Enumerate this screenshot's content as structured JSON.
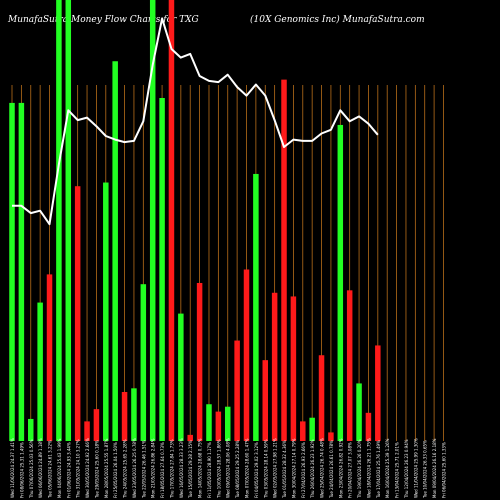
{
  "header": {
    "left": "MunafaSutra  Money Flow  Charts for TXG",
    "right": "(10X  Genomics Inc) MunafaSutra.com"
  },
  "colors": {
    "background": "#000000",
    "up": "#22ff22",
    "down": "#ff1a1a",
    "grid": "#b86e1a",
    "line": "#ffffff",
    "text": "#ffffff"
  },
  "chart_data": {
    "type": "bar",
    "title": "MunafaSutra  Money Flow  Charts for TXG",
    "subtitle": "(10X  Genomics Inc) MunafaSutra.com",
    "xlabel": "",
    "ylabel": "",
    "grid": true,
    "categories": [
      "Wed 11/06/2024",
      "Fri 08/06/2024",
      "Thu 07/06/2024",
      "Wed 06/06/2024",
      "Tue 05/06/2024",
      "Mon 04/06/2024",
      "Fri 01/06/2024",
      "Thu 31/05/2024",
      "Wed 30/05/2024",
      "Tue 29/05/2024",
      "Mon 28/05/2024",
      "Fri 25/05/2024",
      "Thu 24/05/2024",
      "Wed 23/05/2024",
      "Tue 22/05/2024",
      "Mon 21/05/2024",
      "Fri 18/05/2024",
      "Thu 17/05/2024",
      "Wed 16/05/2024",
      "Tue 15/05/2024",
      "Mon 14/05/2024",
      "Fri 11/05/2024",
      "Thu 10/05/2024",
      "Wed 09/05/2024",
      "Tue 08/05/2024",
      "Mon 07/05/2024",
      "Fri 04/05/2024",
      "Thu 03/05/2024",
      "Wed 02/05/2024",
      "Tue 01/05/2024",
      "Mon 30/04/2024",
      "Fri 27/04/2024",
      "Thu 26/04/2024",
      "Wed 25/04/2024",
      "Tue 24/04/2024",
      "Mon 23/04/2024",
      "Fri 20/04/2024",
      "Thu 19/04/2024",
      "Wed 18/04/2024",
      "Tue 17/04/2024",
      "Mon 16/04/2024",
      "Fri 13/04/2024",
      "Thu 12/04/2024",
      "Wed 11/04/2024",
      "Tue 10/04/2024",
      "Mon 09/04/2024",
      "Fri 06/04/2024"
    ],
    "tick_labels": [
      "Wed 11/06/2024 24.37 1.41%",
      "Fri 08/06/2024 25.31 1.49%",
      "Thu 07/06/2024 25.03 0.56%",
      "Wed 06/06/2024 24.89 1.18%",
      "Tue 05/06/2024 24.61 3.22%",
      "Mon 04/06/2024 25.43 1.99%",
      "Fri 01/06/2024 24.93 3.44%",
      "Thu 31/05/2024 24.10 3.27%",
      "Wed 30/05/2024 24.92 2.66%",
      "Tue 29/05/2024 25.60 0.18%",
      "Mon 28/05/2024 25.55 1.87%",
      "Fri 25/05/2024 26.04 1.50%",
      "Thu 24/05/2024 25.65 2.28%",
      "Wed 23/05/2024 26.25 0.78%",
      "Tue 22/05/2024 26.46 1.51%",
      "Mon 21/05/2024 26.86 2.84%",
      "Fri 18/05/2024 27.64 0.73%",
      "Thu 17/05/2024 27.84 1.73%",
      "Wed 16/05/2024 28.33 3.23%",
      "Tue 15/05/2024 29.28 2.15%",
      "Mon 14/05/2024 28.68 0.75%",
      "Fri 11/05/2024 28.90 1.17%",
      "Thu 10/05/2024 28.57 1.86%",
      "Wed 09/05/2024 28.06 4.08%",
      "Tue 08/05/2024 29.25 2.28%",
      "Mon 07/05/2024 28.60 1.47%",
      "Fri 04/05/2024 29.02 3.12%",
      "Thu 03/05/2024 28.14 0.59%",
      "Wed 02/05/2024 27.98 1.21%",
      "Tue 01/05/2024 28.32 4.36%",
      "Mon 30/04/2024 27.14 0.79%",
      "Fri 27/04/2024 26.93 2.66%",
      "Thu 26/04/2024 26.23 1.92%",
      "Wed 25/04/2024 26.74 0.48%",
      "Tue 24/04/2024 26.61 0.78%",
      "Mon 23/04/2024 26.82 0.92%",
      "Fri 20/04/2024 27.07 3.08%",
      "Thu 19/04/2024 26.26 0.20%",
      "Wed 18/04/2024 26.21 1.75%",
      "Tue 17/04/2024 25.76 1.49%",
      "Mon 16/04/2024 25.39 1.26%",
      "Fri 13/04/2024 25.71 2.01%",
      "Thu 12/04/2024 26.23 0.94%",
      "Wed 11/04/2024 25.99 1.30%",
      "Tue 10/04/2024 26.33 0.65%",
      "Mon 09/04/2024 26.16 2.18%",
      "Fri 06/04/2024 25.60 1.33%"
    ],
    "ylim": [
      0,
      360
    ],
    "bars": [
      {
        "value": 276,
        "dir": "up"
      },
      {
        "value": 276,
        "dir": "up"
      },
      {
        "value": 18,
        "dir": "up"
      },
      {
        "value": 113,
        "dir": "up"
      },
      {
        "value": 136,
        "dir": "down"
      },
      {
        "value": 360,
        "dir": "up"
      },
      {
        "value": 360,
        "dir": "up"
      },
      {
        "value": 208,
        "dir": "down"
      },
      {
        "value": 16,
        "dir": "down"
      },
      {
        "value": 26,
        "dir": "down"
      },
      {
        "value": 211,
        "dir": "up"
      },
      {
        "value": 310,
        "dir": "up"
      },
      {
        "value": 40,
        "dir": "down"
      },
      {
        "value": 43,
        "dir": "up"
      },
      {
        "value": 128,
        "dir": "up"
      },
      {
        "value": 360,
        "dir": "up"
      },
      {
        "value": 280,
        "dir": "up"
      },
      {
        "value": 360,
        "dir": "down"
      },
      {
        "value": 104,
        "dir": "up"
      },
      {
        "value": 5,
        "dir": "down"
      },
      {
        "value": 129,
        "dir": "down"
      },
      {
        "value": 30,
        "dir": "up"
      },
      {
        "value": 24,
        "dir": "down"
      },
      {
        "value": 28,
        "dir": "up"
      },
      {
        "value": 82,
        "dir": "down"
      },
      {
        "value": 140,
        "dir": "down"
      },
      {
        "value": 218,
        "dir": "up"
      },
      {
        "value": 66,
        "dir": "down"
      },
      {
        "value": 121,
        "dir": "down"
      },
      {
        "value": 295,
        "dir": "down"
      },
      {
        "value": 118,
        "dir": "down"
      },
      {
        "value": 16,
        "dir": "down"
      },
      {
        "value": 19,
        "dir": "up"
      },
      {
        "value": 70,
        "dir": "down"
      },
      {
        "value": 7,
        "dir": "down"
      },
      {
        "value": 258,
        "dir": "up"
      },
      {
        "value": 123,
        "dir": "down"
      },
      {
        "value": 47,
        "dir": "up"
      },
      {
        "value": 23,
        "dir": "down"
      },
      {
        "value": 78,
        "dir": "down"
      },
      {
        "value": 0,
        "dir": "down"
      },
      {
        "value": 0,
        "dir": "down"
      },
      {
        "value": 0,
        "dir": "down"
      },
      {
        "value": 0,
        "dir": "down"
      },
      {
        "value": 0,
        "dir": "down"
      },
      {
        "value": 0,
        "dir": "down"
      },
      {
        "value": 0,
        "dir": "down"
      }
    ],
    "line": [
      {
        "x": 0,
        "y": 192
      },
      {
        "x": 1,
        "y": 192
      },
      {
        "x": 2,
        "y": 186
      },
      {
        "x": 3,
        "y": 188
      },
      {
        "x": 4,
        "y": 177
      },
      {
        "x": 5,
        "y": 226
      },
      {
        "x": 6,
        "y": 270
      },
      {
        "x": 7,
        "y": 262
      },
      {
        "x": 8,
        "y": 264
      },
      {
        "x": 9,
        "y": 257
      },
      {
        "x": 10,
        "y": 249
      },
      {
        "x": 11,
        "y": 246
      },
      {
        "x": 12,
        "y": 244
      },
      {
        "x": 13,
        "y": 245
      },
      {
        "x": 14,
        "y": 261
      },
      {
        "x": 15,
        "y": 307
      },
      {
        "x": 16,
        "y": 345
      },
      {
        "x": 17,
        "y": 320
      },
      {
        "x": 18,
        "y": 313
      },
      {
        "x": 19,
        "y": 316
      },
      {
        "x": 20,
        "y": 298
      },
      {
        "x": 21,
        "y": 294
      },
      {
        "x": 22,
        "y": 293
      },
      {
        "x": 23,
        "y": 299
      },
      {
        "x": 24,
        "y": 289
      },
      {
        "x": 25,
        "y": 282
      },
      {
        "x": 26,
        "y": 291
      },
      {
        "x": 27,
        "y": 282
      },
      {
        "x": 28,
        "y": 262
      },
      {
        "x": 29,
        "y": 240
      },
      {
        "x": 30,
        "y": 246
      },
      {
        "x": 31,
        "y": 245
      },
      {
        "x": 32,
        "y": 245
      },
      {
        "x": 33,
        "y": 251
      },
      {
        "x": 34,
        "y": 254
      },
      {
        "x": 35,
        "y": 270
      },
      {
        "x": 36,
        "y": 261
      },
      {
        "x": 37,
        "y": 265
      },
      {
        "x": 38,
        "y": 259
      },
      {
        "x": 39,
        "y": 250
      }
    ]
  }
}
